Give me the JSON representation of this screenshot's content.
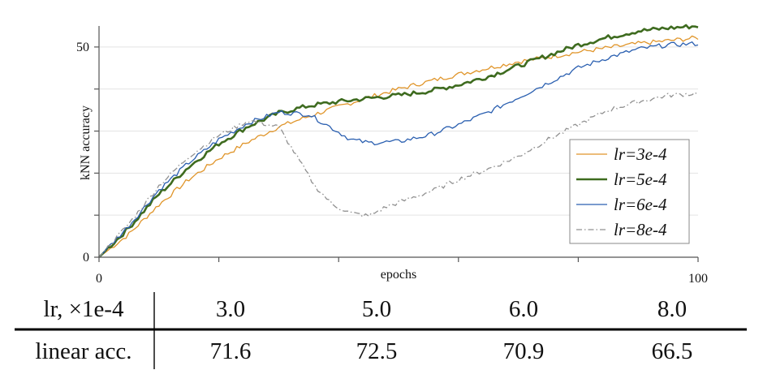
{
  "chart_data": {
    "type": "line",
    "xlabel": "epochs",
    "ylabel": "kNN accuracy",
    "xlim": [
      0,
      100
    ],
    "ylim": [
      0,
      55
    ],
    "x_ticks": [
      0,
      20,
      40,
      60,
      80,
      100
    ],
    "x_tick_labels": [
      "0",
      "",
      "",
      "",
      "",
      "100"
    ],
    "y_ticks": [
      0,
      10,
      20,
      30,
      40,
      50
    ],
    "y_tick_labels": [
      "0",
      "",
      "",
      "",
      "",
      "50"
    ],
    "grid": "horizontal",
    "legend_position": "bottom-right",
    "series": [
      {
        "name": "lr=3e-4",
        "color": "#e0952a",
        "style": "solid",
        "x": [
          0,
          5,
          10,
          15,
          20,
          25,
          30,
          35,
          40,
          45,
          50,
          55,
          60,
          65,
          70,
          75,
          80,
          85,
          90,
          95,
          100
        ],
        "y": [
          0,
          5.5,
          12.5,
          18.5,
          23.5,
          27.5,
          31,
          33.5,
          35.8,
          38,
          40,
          41.8,
          43.5,
          45,
          46.5,
          47.6,
          48.8,
          49.8,
          50.8,
          51.5,
          52.2
        ]
      },
      {
        "name": "lr=5e-4",
        "color": "#3e6b1f",
        "style": "solid",
        "x": [
          0,
          5,
          10,
          15,
          20,
          25,
          30,
          35,
          40,
          45,
          50,
          55,
          60,
          65,
          70,
          75,
          80,
          85,
          90,
          95,
          100
        ],
        "y": [
          0,
          7,
          15,
          21.5,
          27,
          31.2,
          34.3,
          36,
          37,
          37.8,
          38.5,
          39.5,
          41,
          43,
          45.5,
          48,
          50.5,
          52.3,
          53.8,
          54.5,
          55
        ]
      },
      {
        "name": "lr=6e-4",
        "color": "#2a5fb0",
        "style": "solid",
        "x": [
          0,
          5,
          10,
          15,
          20,
          25,
          30,
          35,
          38,
          42,
          45,
          50,
          55,
          60,
          65,
          70,
          75,
          80,
          85,
          90,
          95,
          100
        ],
        "y": [
          0,
          7.5,
          16,
          22.5,
          28,
          32,
          34.5,
          34,
          31.5,
          28,
          27.2,
          27.5,
          29,
          31.5,
          34.5,
          38,
          41.5,
          45,
          47.5,
          49.5,
          50.5,
          50.8
        ]
      },
      {
        "name": "lr=8e-4",
        "color": "#909090",
        "style": "dashdot",
        "x": [
          0,
          5,
          10,
          15,
          20,
          25,
          30,
          33,
          36,
          39,
          42,
          45,
          48,
          52,
          56,
          60,
          65,
          70,
          75,
          80,
          85,
          90,
          95,
          100
        ],
        "y": [
          0,
          8,
          17,
          24,
          29,
          32.5,
          31,
          24,
          17,
          12.5,
          10.5,
          9.8,
          12,
          14,
          16,
          18.5,
          21,
          24,
          28,
          31.5,
          35,
          37,
          38.5,
          39
        ]
      }
    ]
  },
  "table": {
    "header_label": "lr, ×1e-4",
    "lr_values": [
      "3.0",
      "5.0",
      "6.0",
      "8.0"
    ],
    "row_label": "linear acc.",
    "acc_values": [
      "71.6",
      "72.5",
      "70.9",
      "66.5"
    ]
  },
  "colors": {
    "grid": "#e3e3e3",
    "axis": "#555555",
    "rule": "#000000"
  }
}
